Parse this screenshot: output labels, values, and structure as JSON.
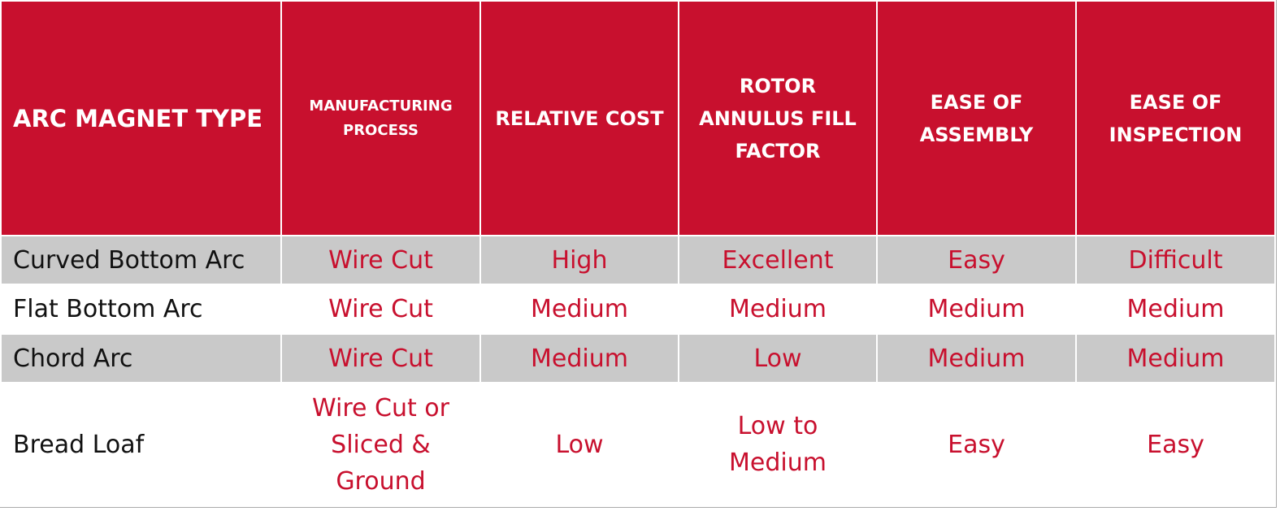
{
  "table": {
    "header": [
      "ARC MAGNET TYPE",
      "MANUFACTURING PROCESS",
      "RELATIVE COST",
      "ROTOR ANNULUS FILL FACTOR",
      "EASE OF ASSEMBLY",
      "EASE OF INSPECTION"
    ],
    "rows": [
      [
        "Curved Bottom Arc",
        "Wire Cut",
        "High",
        "Excellent",
        "Easy",
        "Difficult"
      ],
      [
        "Flat Bottom Arc",
        "Wire Cut",
        "Medium",
        "Medium",
        "Medium",
        "Medium"
      ],
      [
        "Chord Arc",
        "Wire Cut",
        "Medium",
        "Low",
        "Medium",
        "Medium"
      ],
      [
        "Bread Loaf",
        "Wire Cut or Sliced & Ground",
        "Low",
        "Low to Medium",
        "Easy",
        "Easy"
      ]
    ]
  }
}
